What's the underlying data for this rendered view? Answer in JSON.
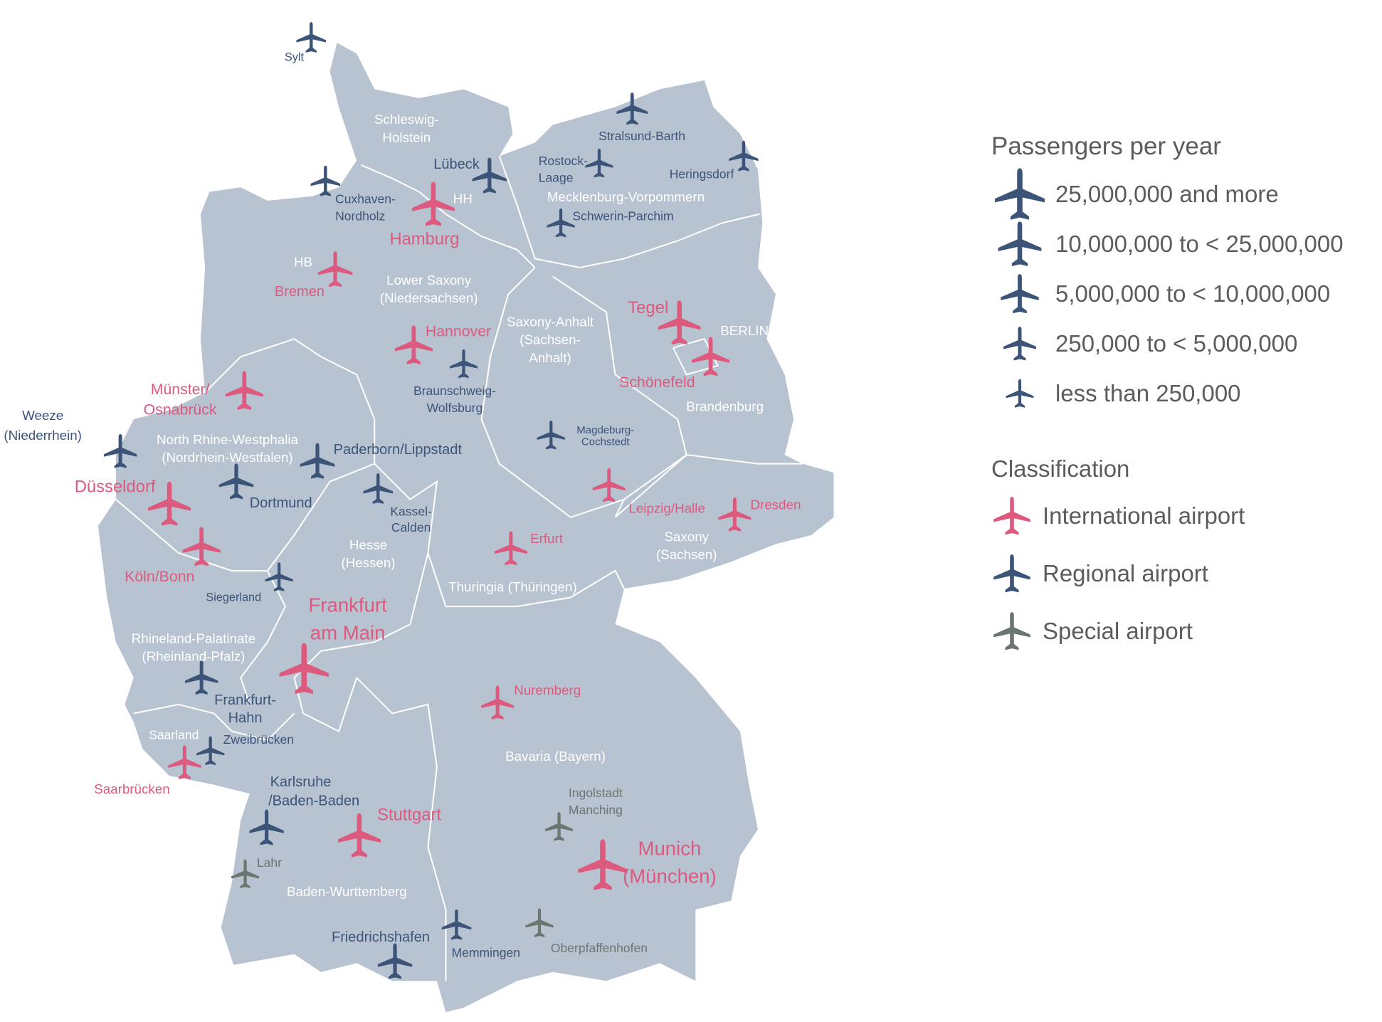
{
  "colors": {
    "international": "#dc5a7e",
    "regional": "#3b5478",
    "special": "#6b7670",
    "land": "#b8c3d1",
    "border": "#ffffff",
    "legend_text": "#5c5c5c"
  },
  "legend": {
    "passengers_title": "Passengers per year",
    "passenger_classes": [
      {
        "label": "25,000,000 and more",
        "icon": "airplane-icon"
      },
      {
        "label": "10,000,000 to < 25,000,000",
        "icon": "airplane-icon"
      },
      {
        "label": "5,000,000 to < 10,000,000",
        "icon": "airplane-icon"
      },
      {
        "label": "250,000 to < 5,000,000",
        "icon": "airplane-icon"
      },
      {
        "label": "less than 250,000",
        "icon": "airplane-icon"
      }
    ],
    "classification_title": "Classification",
    "classifications": [
      {
        "label": "International airport",
        "type": "international"
      },
      {
        "label": "Regional airport",
        "type": "regional"
      },
      {
        "label": "Special airport",
        "type": "special"
      }
    ]
  },
  "airports": [
    {
      "label_lines": [
        "Sylt"
      ],
      "type": "regional"
    },
    {
      "label_lines": [
        "Stralsund-Barth"
      ],
      "type": "regional"
    },
    {
      "label_lines": [
        "Rostock-",
        "Laage"
      ],
      "type": "regional"
    },
    {
      "label_lines": [
        "Heringsdorf"
      ],
      "type": "regional"
    },
    {
      "label_lines": [
        "Lübeck"
      ],
      "type": "regional"
    },
    {
      "label_lines": [
        "Cuxhaven-",
        "Nordholz"
      ],
      "type": "regional"
    },
    {
      "label_lines": [
        "Hamburg"
      ],
      "type": "international"
    },
    {
      "label_lines": [
        "Schwerin-Parchim"
      ],
      "type": "regional"
    },
    {
      "label_lines": [
        "Bremen"
      ],
      "type": "international"
    },
    {
      "label_lines": [
        "Tegel"
      ],
      "type": "international"
    },
    {
      "label_lines": [
        "Schönefeld"
      ],
      "type": "international"
    },
    {
      "label_lines": [
        "Hannover"
      ],
      "type": "international"
    },
    {
      "label_lines": [
        "Braunschweig-",
        "Wolfsburg"
      ],
      "type": "regional"
    },
    {
      "label_lines": [
        "Münster/",
        "Osnabrück"
      ],
      "type": "international"
    },
    {
      "label_lines": [
        "Weeze",
        "(Niederrhein)"
      ],
      "type": "regional"
    },
    {
      "label_lines": [
        "Paderborn/Lippstadt"
      ],
      "type": "regional"
    },
    {
      "label_lines": [
        "Magdeburg-",
        "Cochstedt"
      ],
      "type": "regional"
    },
    {
      "label_lines": [
        "Dortmund"
      ],
      "type": "regional"
    },
    {
      "label_lines": [
        "Düsseldorf"
      ],
      "type": "international"
    },
    {
      "label_lines": [
        "Kassel-",
        "Calden"
      ],
      "type": "regional"
    },
    {
      "label_lines": [
        "Leipzig/Halle"
      ],
      "type": "international"
    },
    {
      "label_lines": [
        "Dresden"
      ],
      "type": "international"
    },
    {
      "label_lines": [
        "Köln/Bonn"
      ],
      "type": "international"
    },
    {
      "label_lines": [
        "Erfurt"
      ],
      "type": "international"
    },
    {
      "label_lines": [
        "Siegerland"
      ],
      "type": "regional"
    },
    {
      "label_lines": [
        "Frankfurt",
        "am Main"
      ],
      "type": "international"
    },
    {
      "label_lines": [
        "Frankfurt-",
        "Hahn"
      ],
      "type": "regional"
    },
    {
      "label_lines": [
        "Nuremberg"
      ],
      "type": "international"
    },
    {
      "label_lines": [
        "Zweibrücken"
      ],
      "type": "regional"
    },
    {
      "label_lines": [
        "Saarbrücken"
      ],
      "type": "international"
    },
    {
      "label_lines": [
        "Karlsruhe",
        "/Baden-Baden"
      ],
      "type": "regional"
    },
    {
      "label_lines": [
        "Stuttgart"
      ],
      "type": "international"
    },
    {
      "label_lines": [
        "Ingolstadt",
        "Manching"
      ],
      "type": "special"
    },
    {
      "label_lines": [
        "Munich",
        "(München)"
      ],
      "type": "international"
    },
    {
      "label_lines": [
        "Lahr"
      ],
      "type": "special"
    },
    {
      "label_lines": [
        "Memmingen"
      ],
      "type": "regional"
    },
    {
      "label_lines": [
        "Oberpfaffenhofen"
      ],
      "type": "special"
    },
    {
      "label_lines": [
        "Friedrichshafen"
      ],
      "type": "regional"
    }
  ],
  "region_labels": [
    [
      "Schleswig-",
      "Holstein"
    ],
    [
      "Mecklenburg-Vorpommern"
    ],
    [
      "Lower Saxony",
      "(Niedersachsen)"
    ],
    [
      "Saxony-Anhalt",
      "(Sachsen-",
      "Anhalt)"
    ],
    [
      "Brandenburg"
    ],
    [
      "North Rhine-Westphalia",
      "(Nordrhein-Westfalen)"
    ],
    [
      "Hesse",
      "(Hessen)"
    ],
    [
      "Thuringia (Thüringen)"
    ],
    [
      "Saxony",
      "(Sachsen)"
    ],
    [
      "Rhineland-Palatinate",
      "(Rheinland-Pfalz)"
    ],
    [
      "Saarland"
    ],
    [
      "Bavaria (Bayern)"
    ],
    [
      "Baden-Wurttemberg"
    ],
    [
      "HH"
    ],
    [
      "HB"
    ],
    [
      "BERLIN"
    ]
  ]
}
